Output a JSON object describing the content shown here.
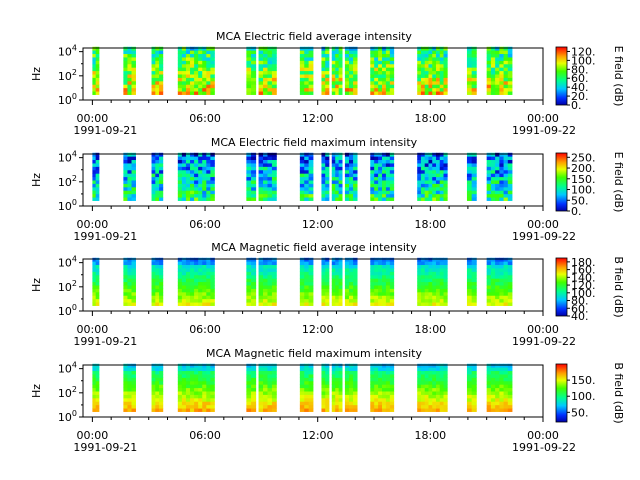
{
  "chart_data": [
    {
      "type": "heatmap",
      "title": "MCA  Electric field average intensity",
      "ylabel": "Hz",
      "colorbar_label": "E field (dB)",
      "colorbar_ticks": [
        "0.",
        "20.",
        "40.",
        "60.",
        "80.",
        "100.",
        "120."
      ],
      "colorbar_range": [
        0,
        130
      ],
      "yscale": "log",
      "ylim": [
        1,
        20000
      ],
      "y_ticks": [
        {
          "base": "10",
          "exp": "0"
        },
        {
          "base": "10",
          "exp": "2"
        },
        {
          "base": "10",
          "exp": "4"
        }
      ],
      "x_ticks": [
        "00:00",
        "06:00",
        "12:00",
        "18:00",
        "00:00"
      ],
      "x_date_labels": [
        "1991-09-21",
        "1991-09-22"
      ],
      "xlim_hours": [
        -0.5,
        24
      ],
      "style": "efield",
      "level": 0.55,
      "segments": [
        [
          0,
          0.35
        ],
        [
          1.65,
          2.3
        ],
        [
          3.15,
          3.75
        ],
        [
          4.55,
          6.5
        ],
        [
          8.2,
          8.7
        ],
        [
          8.85,
          9.8
        ],
        [
          11.05,
          11.75
        ],
        [
          12.2,
          12.6
        ],
        [
          12.75,
          13.3
        ],
        [
          13.45,
          14.1
        ],
        [
          14.8,
          16.05
        ],
        [
          17.3,
          18.9
        ],
        [
          19.95,
          20.45
        ],
        [
          21.0,
          22.35
        ]
      ]
    },
    {
      "type": "heatmap",
      "title": "MCA  Electric field maximum intensity",
      "ylabel": "Hz",
      "colorbar_label": "E field (dB)",
      "colorbar_ticks": [
        "0.",
        "50.",
        "100.",
        "150.",
        "200.",
        "250."
      ],
      "colorbar_range": [
        0,
        270
      ],
      "yscale": "log",
      "ylim": [
        1,
        20000
      ],
      "y_ticks": [
        {
          "base": "10",
          "exp": "0"
        },
        {
          "base": "10",
          "exp": "2"
        },
        {
          "base": "10",
          "exp": "4"
        }
      ],
      "x_ticks": [
        "00:00",
        "06:00",
        "12:00",
        "18:00",
        "00:00"
      ],
      "x_date_labels": [
        "1991-09-21",
        "1991-09-22"
      ],
      "xlim_hours": [
        -0.5,
        24
      ],
      "style": "efield",
      "level": 0.28,
      "segments": [
        [
          0,
          0.35
        ],
        [
          1.65,
          2.3
        ],
        [
          3.15,
          3.75
        ],
        [
          4.55,
          6.5
        ],
        [
          8.2,
          8.7
        ],
        [
          8.85,
          9.8
        ],
        [
          11.05,
          11.75
        ],
        [
          12.2,
          12.6
        ],
        [
          12.75,
          13.3
        ],
        [
          13.45,
          14.1
        ],
        [
          14.8,
          16.05
        ],
        [
          17.3,
          18.9
        ],
        [
          19.95,
          20.45
        ],
        [
          21.0,
          22.35
        ]
      ]
    },
    {
      "type": "heatmap",
      "title": "MCA  Magnetic field average intensity",
      "ylabel": "Hz",
      "colorbar_label": "B field (dB)",
      "colorbar_ticks": [
        "40.",
        "60.",
        "80.",
        "100.",
        "120.",
        "140.",
        "160.",
        "180."
      ],
      "colorbar_range": [
        40,
        190
      ],
      "yscale": "log",
      "ylim": [
        1,
        20000
      ],
      "y_ticks": [
        {
          "base": "10",
          "exp": "0"
        },
        {
          "base": "10",
          "exp": "2"
        },
        {
          "base": "10",
          "exp": "4"
        }
      ],
      "x_ticks": [
        "00:00",
        "06:00",
        "12:00",
        "18:00",
        "00:00"
      ],
      "x_date_labels": [
        "1991-09-21",
        "1991-09-22"
      ],
      "xlim_hours": [
        -0.5,
        24
      ],
      "style": "bfield",
      "level": 0.5,
      "segments": [
        [
          0,
          0.35
        ],
        [
          1.65,
          2.3
        ],
        [
          3.15,
          3.75
        ],
        [
          4.55,
          6.5
        ],
        [
          8.2,
          8.7
        ],
        [
          8.85,
          9.8
        ],
        [
          11.05,
          11.75
        ],
        [
          12.2,
          12.6
        ],
        [
          12.75,
          13.3
        ],
        [
          13.45,
          14.1
        ],
        [
          14.8,
          16.05
        ],
        [
          17.3,
          18.9
        ],
        [
          19.95,
          20.45
        ],
        [
          21.0,
          22.35
        ]
      ]
    },
    {
      "type": "heatmap",
      "title": "MCA  Magnetic field maximum intensity",
      "ylabel": "Hz",
      "colorbar_label": "B field (dB)",
      "colorbar_ticks": [
        "50.",
        "100.",
        "150."
      ],
      "colorbar_range": [
        20,
        200
      ],
      "yscale": "log",
      "ylim": [
        1,
        20000
      ],
      "y_ticks": [
        {
          "base": "10",
          "exp": "0"
        },
        {
          "base": "10",
          "exp": "2"
        },
        {
          "base": "10",
          "exp": "4"
        }
      ],
      "x_ticks": [
        "00:00",
        "06:00",
        "12:00",
        "18:00",
        "00:00"
      ],
      "x_date_labels": [
        "1991-09-21",
        "1991-09-22"
      ],
      "xlim_hours": [
        -0.5,
        24
      ],
      "style": "bfield",
      "level": 0.6,
      "segments": [
        [
          0,
          0.35
        ],
        [
          1.65,
          2.3
        ],
        [
          3.15,
          3.75
        ],
        [
          4.55,
          6.5
        ],
        [
          8.2,
          8.7
        ],
        [
          8.85,
          9.8
        ],
        [
          11.05,
          11.75
        ],
        [
          12.2,
          12.6
        ],
        [
          12.75,
          13.3
        ],
        [
          13.45,
          14.1
        ],
        [
          14.8,
          16.05
        ],
        [
          17.3,
          18.9
        ],
        [
          19.95,
          20.45
        ],
        [
          21.0,
          22.35
        ]
      ]
    }
  ]
}
